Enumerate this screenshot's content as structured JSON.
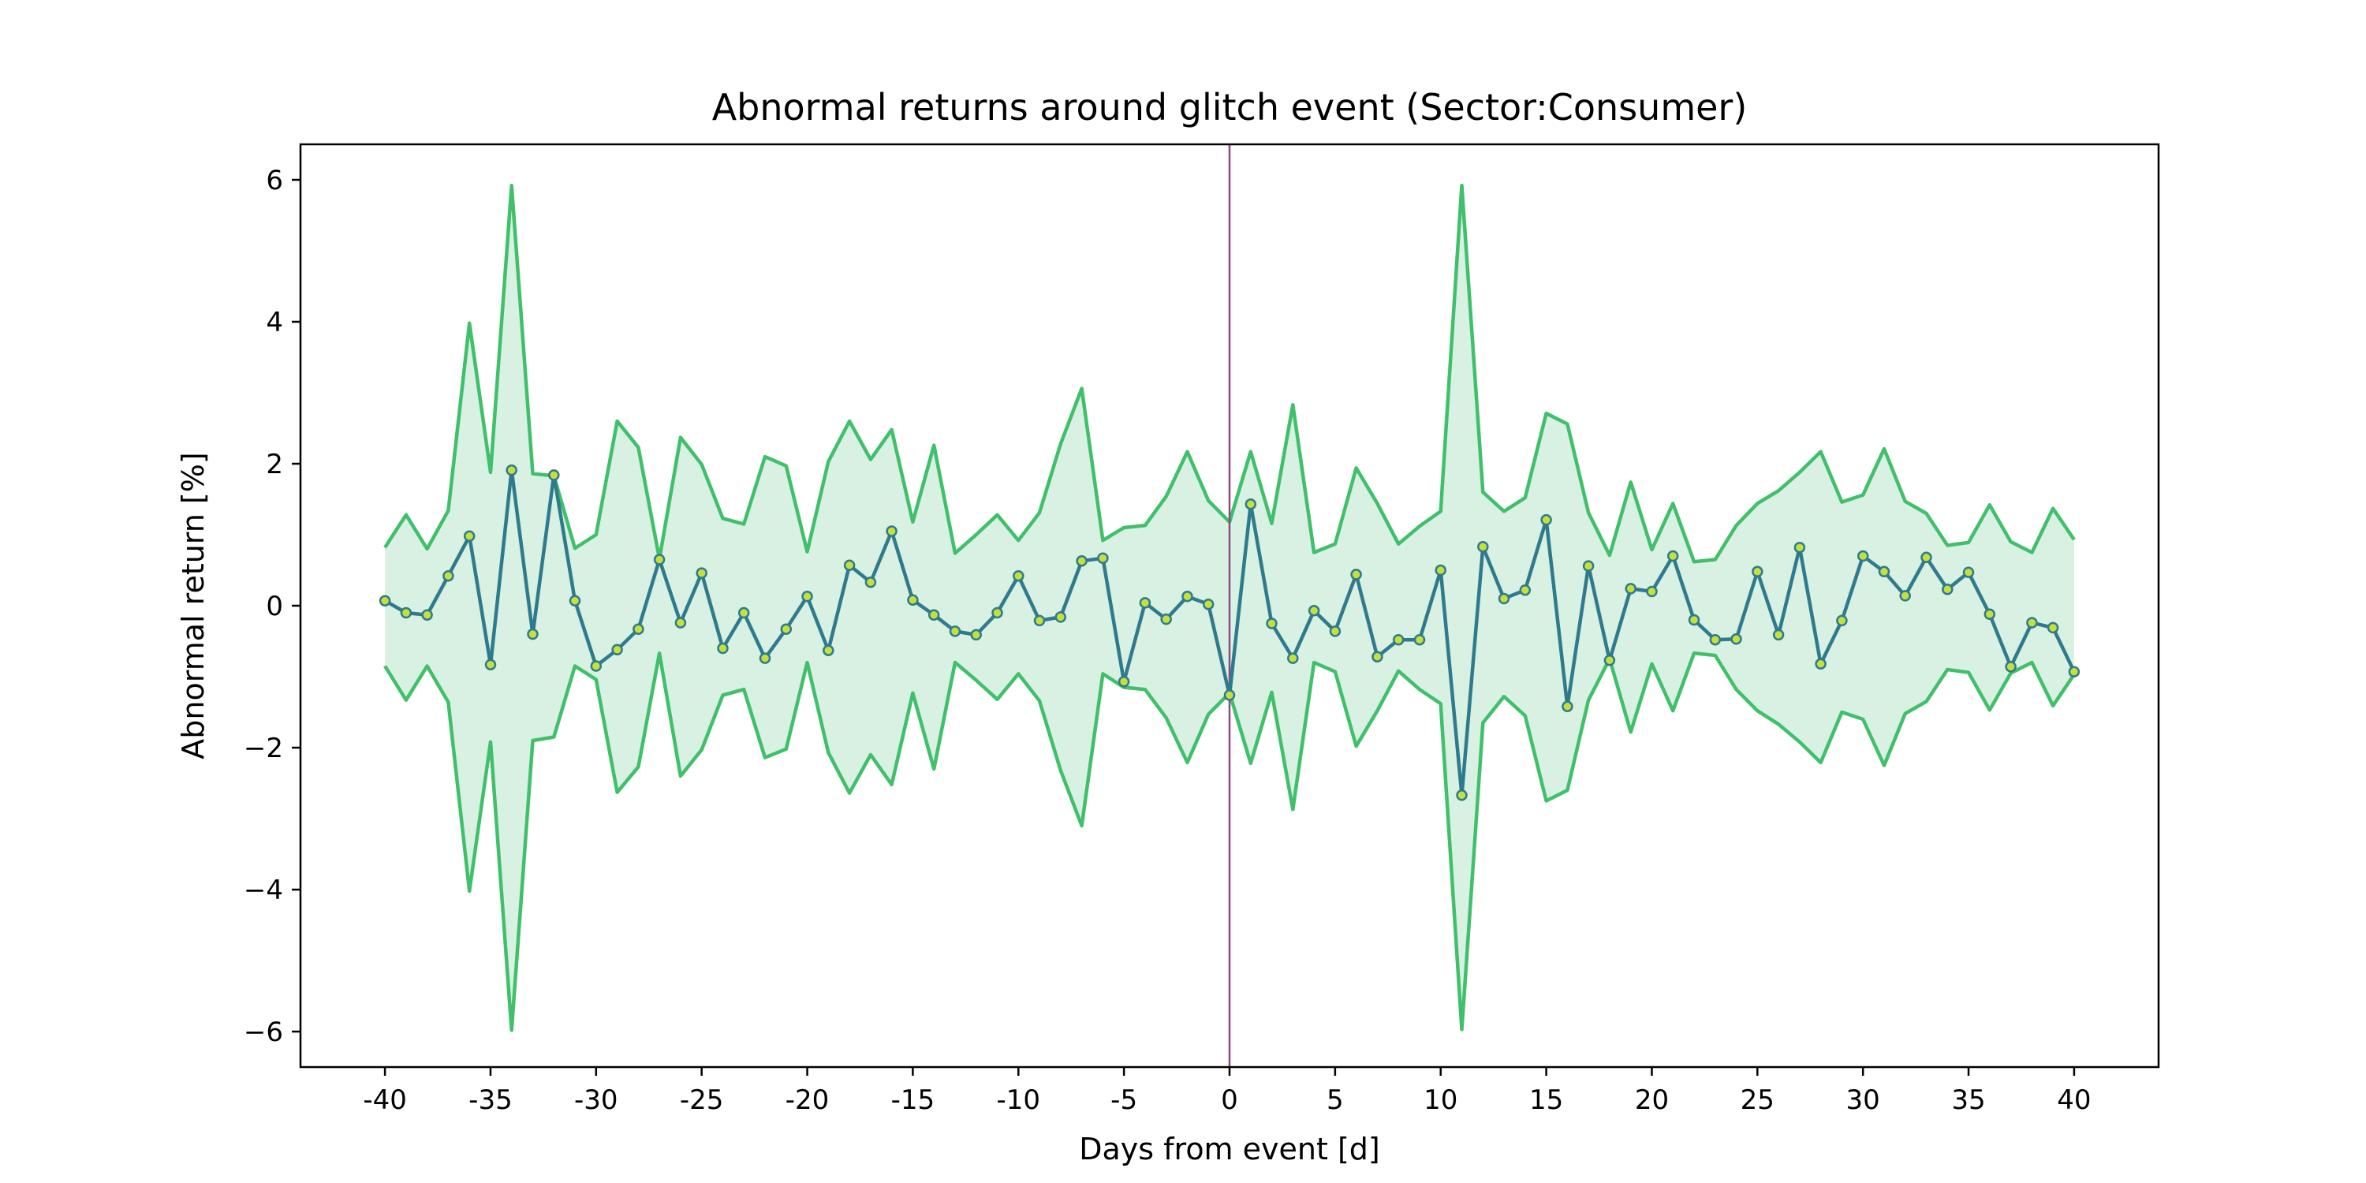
{
  "chart_data": {
    "type": "line",
    "title": "Abnormal returns around glitch event (Sector:Consumer)",
    "xlabel": "Days from event [d]",
    "ylabel": "Abnormal return [%]",
    "xlim": [
      -44,
      44
    ],
    "ylim": [
      -6.5,
      6.5
    ],
    "x_ticks": [
      -40,
      -35,
      -30,
      -25,
      -20,
      -15,
      -10,
      -5,
      0,
      5,
      10,
      15,
      20,
      25,
      30,
      35,
      40
    ],
    "x_tick_labels": [
      "-40",
      "-35",
      "-30",
      "-25",
      "-20",
      "-15",
      "-10",
      "-5",
      "0",
      "5",
      "10",
      "15",
      "20",
      "25",
      "30",
      "35",
      "40"
    ],
    "y_ticks": [
      -6,
      -4,
      -2,
      0,
      2,
      4,
      6
    ],
    "y_tick_labels": [
      "−6",
      "−4",
      "−2",
      "0",
      "2",
      "4",
      "6"
    ],
    "grid": false,
    "event_line_x": 0,
    "x": [
      -40,
      -39,
      -38,
      -37,
      -36,
      -35,
      -34,
      -33,
      -32,
      -31,
      -30,
      -29,
      -28,
      -27,
      -26,
      -25,
      -24,
      -23,
      -22,
      -21,
      -20,
      -19,
      -18,
      -17,
      -16,
      -15,
      -14,
      -13,
      -12,
      -11,
      -10,
      -9,
      -8,
      -7,
      -6,
      -5,
      -4,
      -3,
      -2,
      -1,
      0,
      1,
      2,
      3,
      4,
      5,
      6,
      7,
      8,
      9,
      10,
      11,
      12,
      13,
      14,
      15,
      16,
      17,
      18,
      19,
      20,
      21,
      22,
      23,
      24,
      25,
      26,
      27,
      28,
      29,
      30,
      31,
      32,
      33,
      34,
      35,
      36,
      37,
      38,
      39,
      40
    ],
    "series": [
      {
        "role": "mean",
        "values": [
          0.07,
          -0.1,
          -0.13,
          0.42,
          0.98,
          -0.83,
          1.91,
          -0.4,
          1.84,
          0.07,
          -0.85,
          -0.62,
          -0.33,
          0.65,
          -0.24,
          0.46,
          -0.6,
          -0.1,
          -0.74,
          -0.33,
          0.13,
          -0.63,
          0.57,
          0.33,
          1.05,
          0.08,
          -0.13,
          -0.36,
          -0.41,
          -0.1,
          0.42,
          -0.21,
          -0.16,
          0.63,
          0.67,
          -1.07,
          0.04,
          -0.19,
          0.13,
          0.02,
          -1.26,
          1.43,
          -0.25,
          -0.74,
          -0.07,
          -0.36,
          0.44,
          -0.72,
          -0.48,
          -0.48,
          0.5,
          -2.67,
          0.83,
          0.1,
          0.22,
          1.21,
          -1.42,
          0.56,
          -0.77,
          0.24,
          0.2,
          0.7,
          -0.2,
          -0.48,
          -0.47,
          0.48,
          -0.41,
          0.82,
          -0.82,
          -0.21,
          0.7,
          0.48,
          0.14,
          0.68,
          0.23,
          0.47,
          -0.12,
          -0.86,
          -0.24,
          -0.31,
          -0.93
        ]
      },
      {
        "role": "upper band",
        "values": [
          0.82,
          1.28,
          0.8,
          1.34,
          3.98,
          1.88,
          5.92,
          1.86,
          1.83,
          0.81,
          1.0,
          2.6,
          2.23,
          0.66,
          2.37,
          1.99,
          1.23,
          1.15,
          2.1,
          1.97,
          0.76,
          2.03,
          2.6,
          2.06,
          2.48,
          1.18,
          2.26,
          0.74,
          1.0,
          1.28,
          0.92,
          1.31,
          2.28,
          3.06,
          0.92,
          1.1,
          1.13,
          1.54,
          2.17,
          1.48,
          1.18,
          2.17,
          1.16,
          2.83,
          0.75,
          0.87,
          1.94,
          1.44,
          0.87,
          1.12,
          1.33,
          5.92,
          1.6,
          1.33,
          1.52,
          2.71,
          2.56,
          1.31,
          0.71,
          1.74,
          0.79,
          1.44,
          0.62,
          0.65,
          1.13,
          1.44,
          1.62,
          1.88,
          2.17,
          1.46,
          1.56,
          2.21,
          1.47,
          1.3,
          0.85,
          0.89,
          1.42,
          0.9,
          0.75,
          1.37,
          0.93
        ]
      },
      {
        "role": "lower band",
        "values": [
          -0.85,
          -1.33,
          -0.85,
          -1.36,
          -4.02,
          -1.92,
          -5.98,
          -1.9,
          -1.85,
          -0.85,
          -1.04,
          -2.63,
          -2.27,
          -0.67,
          -2.4,
          -2.03,
          -1.26,
          -1.18,
          -2.14,
          -2.02,
          -0.8,
          -2.07,
          -2.64,
          -2.1,
          -2.52,
          -1.23,
          -2.3,
          -0.8,
          -1.05,
          -1.32,
          -0.96,
          -1.34,
          -2.32,
          -3.1,
          -0.96,
          -1.15,
          -1.18,
          -1.58,
          -2.21,
          -1.53,
          -1.23,
          -2.22,
          -1.22,
          -2.87,
          -0.8,
          -0.93,
          -1.98,
          -1.48,
          -0.92,
          -1.18,
          -1.38,
          -5.97,
          -1.65,
          -1.28,
          -1.55,
          -2.75,
          -2.6,
          -1.33,
          -0.75,
          -1.78,
          -0.82,
          -1.48,
          -0.67,
          -0.7,
          -1.18,
          -1.48,
          -1.67,
          -1.92,
          -2.21,
          -1.5,
          -1.6,
          -2.25,
          -1.52,
          -1.35,
          -0.9,
          -0.94,
          -1.47,
          -0.95,
          -0.8,
          -1.41,
          -0.97
        ]
      }
    ],
    "colors": {
      "mean_line": "#2f7b8e",
      "marker_face": "#c6e03a",
      "band_line": "#40c06a",
      "band_fill": "#d8f1e2",
      "event_line": "#8e4a84",
      "axes": "#000000"
    }
  }
}
